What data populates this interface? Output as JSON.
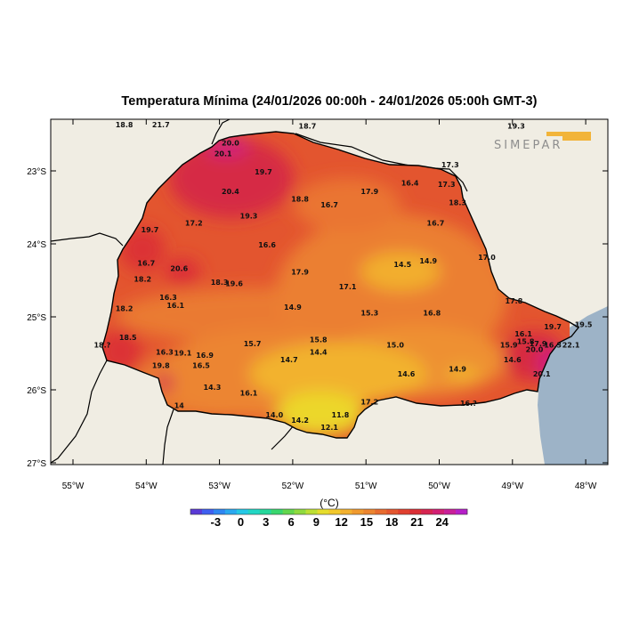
{
  "title": "Temperatura Mínima (24/01/2026 00:00h - 24/01/2026 05:00h GMT-3)",
  "logo_text": "SIMEPAR",
  "lon_ticks": [
    {
      "v": -55,
      "label": "55°W"
    },
    {
      "v": -54,
      "label": "54°W"
    },
    {
      "v": -53,
      "label": "53°W"
    },
    {
      "v": -52,
      "label": "52°W"
    },
    {
      "v": -51,
      "label": "51°W"
    },
    {
      "v": -50,
      "label": "50°W"
    },
    {
      "v": -49,
      "label": "49°W"
    },
    {
      "v": -48,
      "label": "48°W"
    }
  ],
  "lat_ticks": [
    {
      "v": -23,
      "label": "23°S"
    },
    {
      "v": -24,
      "label": "24°S"
    },
    {
      "v": -25,
      "label": "25°S"
    },
    {
      "v": -26,
      "label": "26°S"
    },
    {
      "v": -27,
      "label": "27°S"
    }
  ],
  "colorbar": {
    "unit": "(°C)",
    "labels": [
      "-3",
      "0",
      "3",
      "6",
      "9",
      "12",
      "15",
      "18",
      "21",
      "24"
    ],
    "min": -6,
    "max": 27,
    "step": 1.5,
    "colors": [
      "#5a3ad6",
      "#3f5ff0",
      "#2f86f2",
      "#2aa9f0",
      "#25c8e6",
      "#22d6c4",
      "#26d79b",
      "#39d66e",
      "#62d64d",
      "#8fda3f",
      "#bde034",
      "#e6dd2c",
      "#f2c82c",
      "#f3b12f",
      "#f09a2e",
      "#ec8530",
      "#e86c2f",
      "#e4572f",
      "#e0402f",
      "#da2e35",
      "#d62550",
      "#d21f74",
      "#c91f99",
      "#b61fc8"
    ]
  },
  "colors": {
    "outside_land": "#f0ede3",
    "ocean": "#9db3c7",
    "state_border": "#000000"
  },
  "stations": [
    {
      "lon": -54.3,
      "lat": -22.4,
      "label": "18.8"
    },
    {
      "lon": -53.8,
      "lat": -22.4,
      "label": "21.7"
    },
    {
      "lon": -51.8,
      "lat": -22.42,
      "label": "18.7"
    },
    {
      "lon": -48.95,
      "lat": -22.42,
      "label": "19.3"
    },
    {
      "lon": -52.95,
      "lat": -22.8,
      "label": "20.1"
    },
    {
      "lon": -52.85,
      "lat": -22.65,
      "label": "20.0"
    },
    {
      "lon": -52.4,
      "lat": -23.05,
      "label": "19.7"
    },
    {
      "lon": -52.85,
      "lat": -23.32,
      "label": "20.4"
    },
    {
      "lon": -51.9,
      "lat": -23.42,
      "label": "18.8"
    },
    {
      "lon": -51.5,
      "lat": -23.5,
      "label": "16.7"
    },
    {
      "lon": -50.95,
      "lat": -23.32,
      "label": "17.9"
    },
    {
      "lon": -50.4,
      "lat": -23.2,
      "label": "16.4"
    },
    {
      "lon": -49.9,
      "lat": -23.22,
      "label": "17.3"
    },
    {
      "lon": -49.75,
      "lat": -23.47,
      "label": "18.3"
    },
    {
      "lon": -49.85,
      "lat": -22.95,
      "label": "17.3"
    },
    {
      "lon": -52.6,
      "lat": -23.65,
      "label": "19.3"
    },
    {
      "lon": -53.35,
      "lat": -23.75,
      "label": "17.2"
    },
    {
      "lon": -53.95,
      "lat": -23.84,
      "label": "19.7"
    },
    {
      "lon": -52.35,
      "lat": -24.05,
      "label": "16.6"
    },
    {
      "lon": -50.05,
      "lat": -23.75,
      "label": "16.7"
    },
    {
      "lon": -54.0,
      "lat": -24.3,
      "label": "16.7"
    },
    {
      "lon": -53.55,
      "lat": -24.37,
      "label": "20.6"
    },
    {
      "lon": -54.05,
      "lat": -24.52,
      "label": "18.2"
    },
    {
      "lon": -53.0,
      "lat": -24.56,
      "label": "18.3"
    },
    {
      "lon": -52.8,
      "lat": -24.58,
      "label": "19.6"
    },
    {
      "lon": -51.9,
      "lat": -24.42,
      "label": "17.9"
    },
    {
      "lon": -51.25,
      "lat": -24.62,
      "label": "17.1"
    },
    {
      "lon": -50.5,
      "lat": -24.32,
      "label": "14.5"
    },
    {
      "lon": -50.15,
      "lat": -24.27,
      "label": "14.9"
    },
    {
      "lon": -49.35,
      "lat": -24.22,
      "label": "17.0"
    },
    {
      "lon": -53.7,
      "lat": -24.77,
      "label": "16.3"
    },
    {
      "lon": -53.6,
      "lat": -24.88,
      "label": "16.1"
    },
    {
      "lon": -54.3,
      "lat": -24.92,
      "label": "18.2"
    },
    {
      "lon": -52.0,
      "lat": -24.9,
      "label": "14.9"
    },
    {
      "lon": -50.95,
      "lat": -24.98,
      "label": "15.3"
    },
    {
      "lon": -50.1,
      "lat": -24.98,
      "label": "16.8"
    },
    {
      "lon": -48.98,
      "lat": -24.82,
      "label": "17.8"
    },
    {
      "lon": -54.25,
      "lat": -25.32,
      "label": "18.5"
    },
    {
      "lon": -54.6,
      "lat": -25.42,
      "label": "18.?"
    },
    {
      "lon": -52.55,
      "lat": -25.4,
      "label": "15.7"
    },
    {
      "lon": -51.65,
      "lat": -25.35,
      "label": "15.8"
    },
    {
      "lon": -51.65,
      "lat": -25.52,
      "label": "14.4"
    },
    {
      "lon": -50.6,
      "lat": -25.42,
      "label": "15.0"
    },
    {
      "lon": -53.75,
      "lat": -25.52,
      "label": "16.3"
    },
    {
      "lon": -53.5,
      "lat": -25.53,
      "label": "19.1"
    },
    {
      "lon": -53.2,
      "lat": -25.56,
      "label": "16.9"
    },
    {
      "lon": -53.25,
      "lat": -25.7,
      "label": "16.5"
    },
    {
      "lon": -53.8,
      "lat": -25.7,
      "label": "19.8"
    },
    {
      "lon": -52.05,
      "lat": -25.62,
      "label": "14.7"
    },
    {
      "lon": -48.85,
      "lat": -25.27,
      "label": "16.1"
    },
    {
      "lon": -48.82,
      "lat": -25.37,
      "label": "15.8"
    },
    {
      "lon": -48.65,
      "lat": -25.4,
      "label": "17.9"
    },
    {
      "lon": -48.45,
      "lat": -25.42,
      "label": "16.3"
    },
    {
      "lon": -48.7,
      "lat": -25.48,
      "label": "20.0"
    },
    {
      "lon": -48.2,
      "lat": -25.42,
      "label": "22.1"
    },
    {
      "lon": -48.45,
      "lat": -25.17,
      "label": "19.7"
    },
    {
      "lon": -48.03,
      "lat": -25.14,
      "label": "19.5"
    },
    {
      "lon": -49.05,
      "lat": -25.42,
      "label": "15.9"
    },
    {
      "lon": -49.0,
      "lat": -25.62,
      "label": "14.6"
    },
    {
      "lon": -49.75,
      "lat": -25.75,
      "label": "14.9"
    },
    {
      "lon": -50.45,
      "lat": -25.82,
      "label": "14.6"
    },
    {
      "lon": -48.6,
      "lat": -25.82,
      "label": "20.1"
    },
    {
      "lon": -53.1,
      "lat": -26.0,
      "label": "14.3"
    },
    {
      "lon": -52.6,
      "lat": -26.08,
      "label": "16.1"
    },
    {
      "lon": -50.95,
      "lat": -26.2,
      "label": "17.2"
    },
    {
      "lon": -49.6,
      "lat": -26.22,
      "label": "16.?"
    },
    {
      "lon": -53.55,
      "lat": -26.25,
      "label": "14"
    },
    {
      "lon": -52.25,
      "lat": -26.38,
      "label": "14.0"
    },
    {
      "lon": -51.9,
      "lat": -26.45,
      "label": "14.2"
    },
    {
      "lon": -51.35,
      "lat": -26.38,
      "label": "11.8"
    },
    {
      "lon": -51.5,
      "lat": -26.55,
      "label": "12.1"
    }
  ]
}
